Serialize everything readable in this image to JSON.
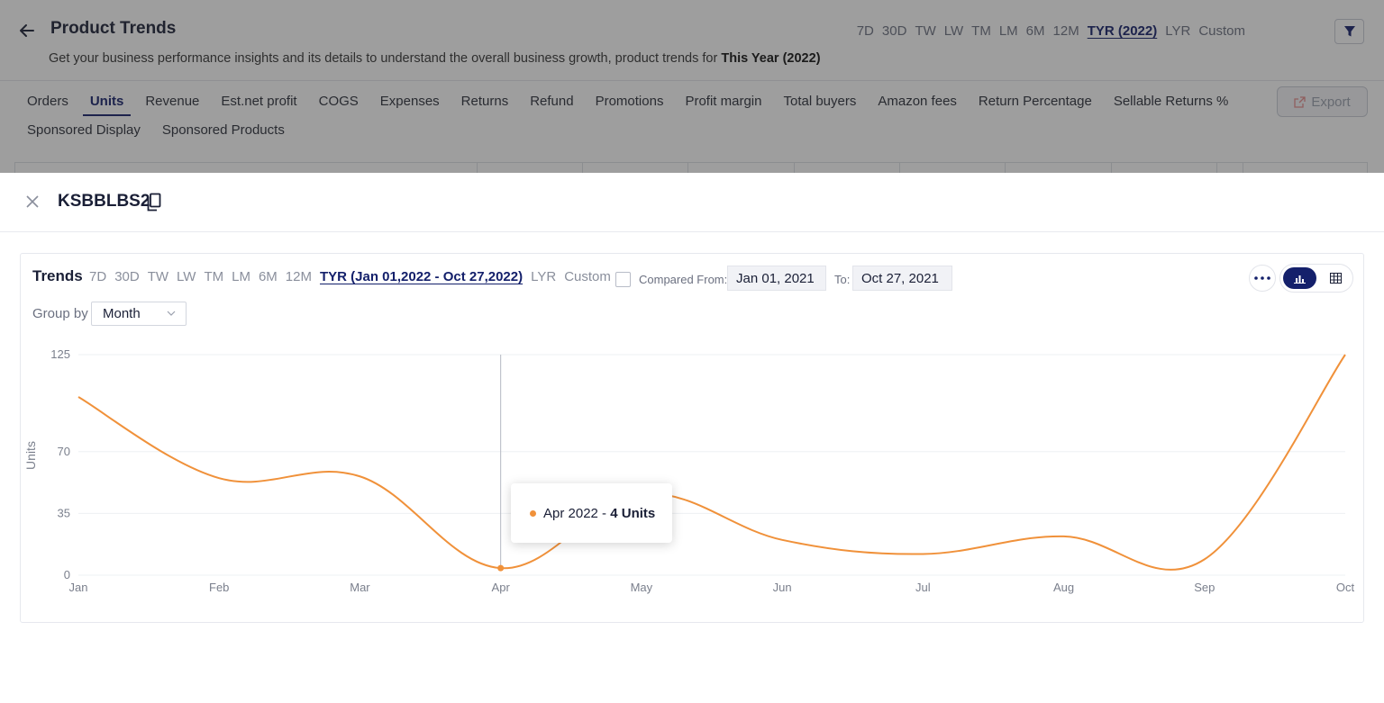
{
  "header": {
    "title": "Product Trends",
    "subtitle_prefix": "Get your business performance insights and its details to understand the overall business growth, product trends for ",
    "subtitle_period": "This Year (2022)",
    "ranges": [
      "7D",
      "30D",
      "TW",
      "LW",
      "TM",
      "LM",
      "6M",
      "12M",
      "TYR (2022)",
      "LYR",
      "Custom"
    ],
    "active_range": "TYR (2022)"
  },
  "metric_tabs": {
    "row1": [
      "Orders",
      "Units",
      "Revenue",
      "Est.net profit",
      "COGS",
      "Expenses",
      "Returns",
      "Refund",
      "Promotions",
      "Profit margin",
      "Total buyers",
      "Amazon fees",
      "Return Percentage",
      "Sellable Returns %"
    ],
    "row2": [
      "Sponsored Display",
      "Sponsored Products"
    ],
    "active": "Units",
    "export_label": "Export"
  },
  "drawer": {
    "sku": "KSBBLBS2",
    "trends_label": "Trends",
    "ranges": [
      "7D",
      "30D",
      "TW",
      "LW",
      "TM",
      "LM",
      "6M",
      "12M",
      "TYR (Jan 01,2022 - Oct 27,2022)",
      "LYR",
      "Custom"
    ],
    "active_range": "TYR (Jan 01,2022 - Oct 27,2022)",
    "compared_from_label": "Compared From:",
    "compared_from_value": "Jan 01, 2021",
    "to_label": "To:",
    "to_value": "Oct 27, 2021",
    "group_by_label": "Group by",
    "group_by_value": "Month",
    "tooltip": {
      "period": "Apr 2022",
      "separator": " - ",
      "value_text": "4 Units"
    }
  },
  "colors": {
    "accent": "#14206b",
    "series": "#f0913a"
  },
  "chart_data": {
    "type": "line",
    "categories": [
      "Jan",
      "Feb",
      "Mar",
      "Apr",
      "May",
      "Jun",
      "Jul",
      "Aug",
      "Sep",
      "Oct"
    ],
    "series": [
      {
        "values": [
          101,
          55,
          56,
          4,
          46,
          20,
          12,
          22,
          9,
          125
        ]
      }
    ],
    "xlabel": "",
    "ylabel": "Units",
    "yticks": [
      0,
      35,
      70,
      125
    ],
    "ylim": [
      0,
      125
    ],
    "grid": true,
    "highlighted_category": "Apr"
  }
}
